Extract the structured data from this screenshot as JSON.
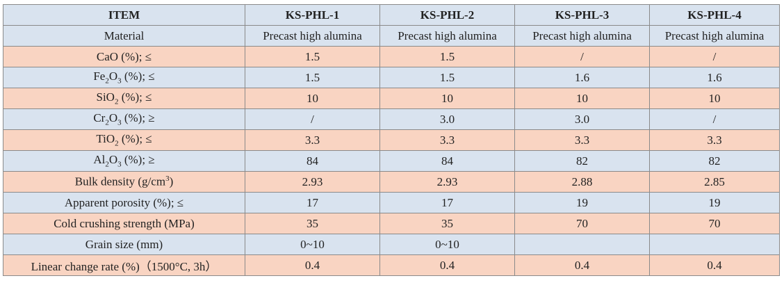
{
  "table": {
    "headers": [
      "ITEM",
      "KS-PHL-1",
      "KS-PHL-2",
      "KS-PHL-3",
      "KS-PHL-4"
    ],
    "rows": [
      {
        "label": "Material",
        "values": [
          "Precast high alumina",
          "Precast high alumina",
          "Precast high alumina",
          "Precast high alumina"
        ]
      },
      {
        "label_parts": [
          "CaO (%); ≤"
        ],
        "values": [
          "1.5",
          "1.5",
          "/",
          "/"
        ]
      },
      {
        "label_parts": [
          "Fe",
          "2",
          "O",
          "3",
          " (%); ≤"
        ],
        "values": [
          "1.5",
          "1.5",
          "1.6",
          "1.6"
        ]
      },
      {
        "label_parts": [
          "SiO",
          "2",
          " (%); ≤"
        ],
        "values": [
          "10",
          "10",
          "10",
          "10"
        ]
      },
      {
        "label_parts": [
          "Cr",
          "2",
          "O",
          "3",
          " (%); ≥"
        ],
        "values": [
          "/",
          "3.0",
          "3.0",
          "/"
        ]
      },
      {
        "label_parts": [
          "TiO",
          "2",
          " (%); ≤"
        ],
        "values": [
          "3.3",
          "3.3",
          "3.3",
          "3.3"
        ]
      },
      {
        "label_parts": [
          "Al",
          "2",
          "O",
          "3",
          " (%); ≥"
        ],
        "values": [
          "84",
          "84",
          "82",
          "82"
        ]
      },
      {
        "label_parts": [
          "Bulk density (g/cm",
          "3",
          ")"
        ],
        "values": [
          "2.93",
          "2.93",
          "2.88",
          "2.85"
        ]
      },
      {
        "label": "Apparent porosity (%); ≤",
        "values": [
          "17",
          "17",
          "19",
          "19"
        ]
      },
      {
        "label": "Cold crushing strength (MPa)",
        "values": [
          "35",
          "35",
          "70",
          "70"
        ]
      },
      {
        "label": "Grain size (mm)",
        "values": [
          "0~10",
          "0~10",
          "",
          ""
        ]
      },
      {
        "label": "Linear change rate (%)（1500°C, 3h）",
        "values": [
          "0.4",
          "0.4",
          "0.4",
          "0.4"
        ]
      }
    ]
  }
}
